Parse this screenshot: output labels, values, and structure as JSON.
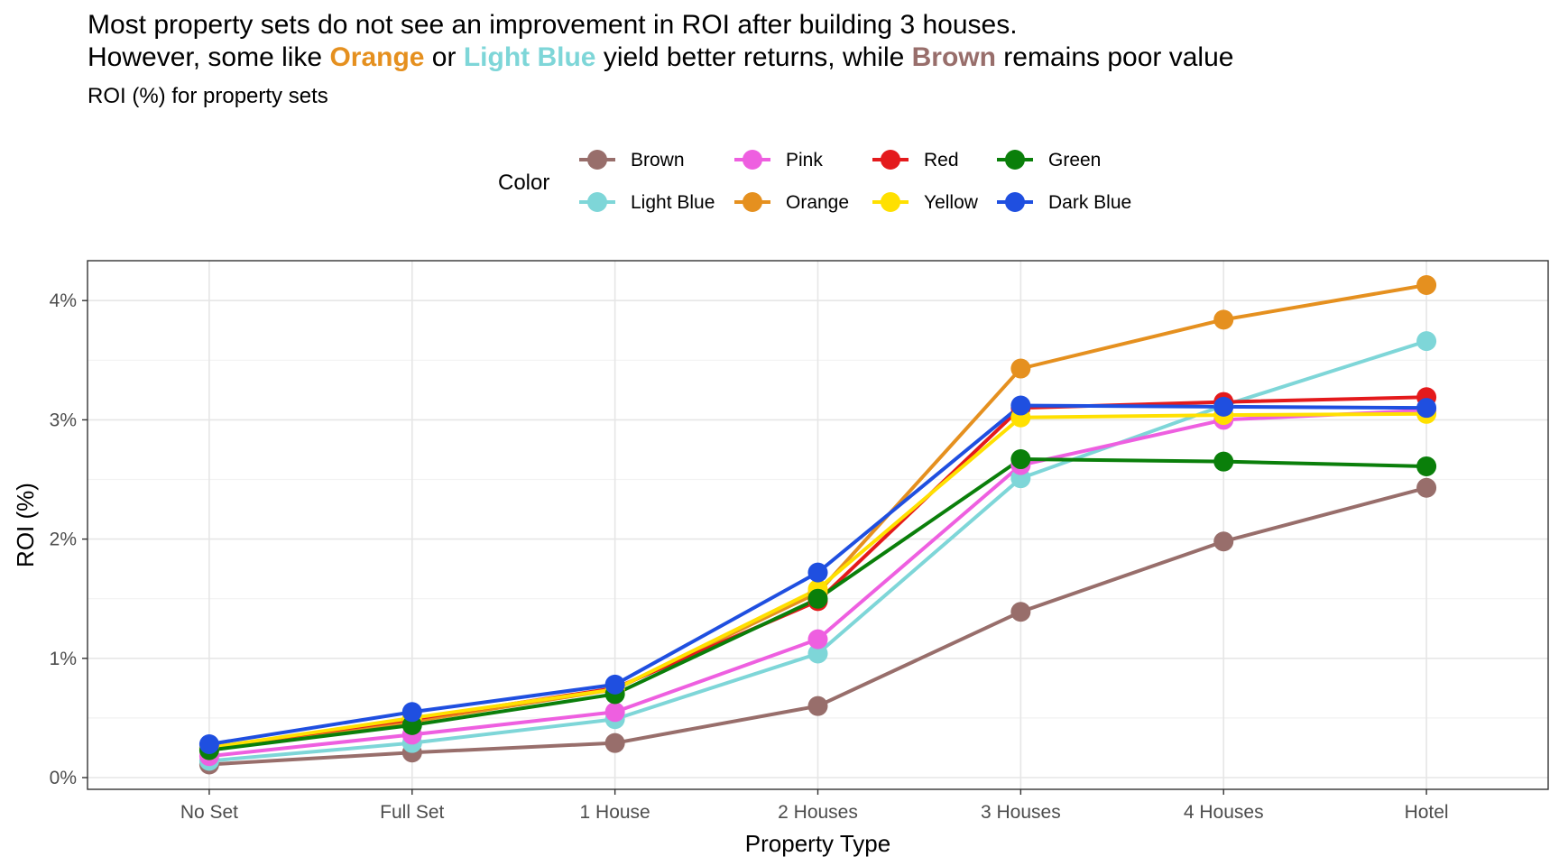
{
  "title": {
    "line1": "Most property sets do not see an improvement in ROI after building 3 houses.",
    "line2_parts": [
      {
        "text": "However, some like ",
        "color": null
      },
      {
        "text": "Orange",
        "color": "#E5901F"
      },
      {
        "text": " or ",
        "color": null
      },
      {
        "text": "Light Blue",
        "color": "#7ED6D8"
      },
      {
        "text": " yield better returns, while ",
        "color": null
      },
      {
        "text": "Brown",
        "color": "#986E6B"
      },
      {
        "text": " remains poor value",
        "color": null
      }
    ]
  },
  "subtitle": "ROI (%) for property sets",
  "legend": {
    "title": "Color",
    "placement": "top"
  },
  "chart_data": {
    "type": "line",
    "xlabel": "Property Type",
    "ylabel": "ROI (%)",
    "categories": [
      "No Set",
      "Full Set",
      "1 House",
      "2 Houses",
      "3 Houses",
      "4 Houses",
      "Hotel"
    ],
    "ylim": [
      0,
      4.35
    ],
    "yticks": [
      0,
      1,
      2,
      3,
      4
    ],
    "ytick_labels": [
      "0%",
      "1%",
      "2%",
      "3%",
      "4%"
    ],
    "grid": true,
    "series": [
      {
        "name": "Brown",
        "color": "#986E6B",
        "values": [
          0.11,
          0.21,
          0.29,
          0.6,
          1.39,
          1.98,
          2.43
        ]
      },
      {
        "name": "Light Blue",
        "color": "#7ED6D8",
        "values": [
          0.14,
          0.29,
          0.49,
          1.04,
          2.51,
          3.12,
          3.66
        ]
      },
      {
        "name": "Pink",
        "color": "#EE5FE0",
        "values": [
          0.18,
          0.36,
          0.55,
          1.16,
          2.62,
          3.0,
          3.08
        ]
      },
      {
        "name": "Orange",
        "color": "#E5901F",
        "values": [
          0.23,
          0.47,
          0.74,
          1.55,
          3.43,
          3.84,
          4.13
        ]
      },
      {
        "name": "Red",
        "color": "#E41A1C",
        "values": [
          0.25,
          0.49,
          0.75,
          1.48,
          3.1,
          3.15,
          3.19
        ]
      },
      {
        "name": "Yellow",
        "color": "#FFE000",
        "values": [
          0.25,
          0.5,
          0.74,
          1.58,
          3.02,
          3.04,
          3.05
        ]
      },
      {
        "name": "Green",
        "color": "#0A7F0A",
        "values": [
          0.23,
          0.44,
          0.7,
          1.5,
          2.67,
          2.65,
          2.61
        ]
      },
      {
        "name": "Dark Blue",
        "color": "#1F4FE0",
        "values": [
          0.28,
          0.55,
          0.78,
          1.72,
          3.12,
          3.11,
          3.1
        ]
      }
    ]
  }
}
